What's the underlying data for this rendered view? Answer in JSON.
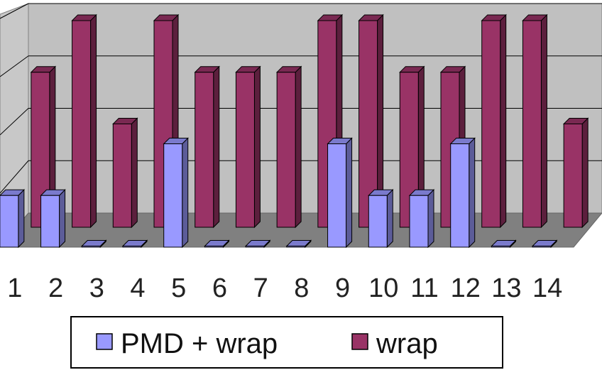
{
  "chart_data": {
    "type": "bar",
    "style": "3d-clustered-column",
    "categories": [
      "1",
      "2",
      "3",
      "4",
      "5",
      "6",
      "7",
      "8",
      "9",
      "10",
      "11",
      "12",
      "13",
      "14"
    ],
    "series": [
      {
        "name": "PMD + wrap",
        "color": "#9999ff",
        "values": [
          1,
          1,
          0,
          0,
          2,
          0,
          0,
          0,
          2,
          1,
          1,
          2,
          0,
          0
        ]
      },
      {
        "name": "wrap",
        "color": "#993366",
        "values": [
          3,
          4,
          2,
          4,
          3,
          3,
          3,
          4,
          4,
          3,
          3,
          4,
          4,
          2
        ]
      }
    ],
    "ylim": [
      0,
      4
    ],
    "grid": true,
    "legend": "bottom",
    "title": "",
    "xlabel": "",
    "ylabel": ""
  }
}
